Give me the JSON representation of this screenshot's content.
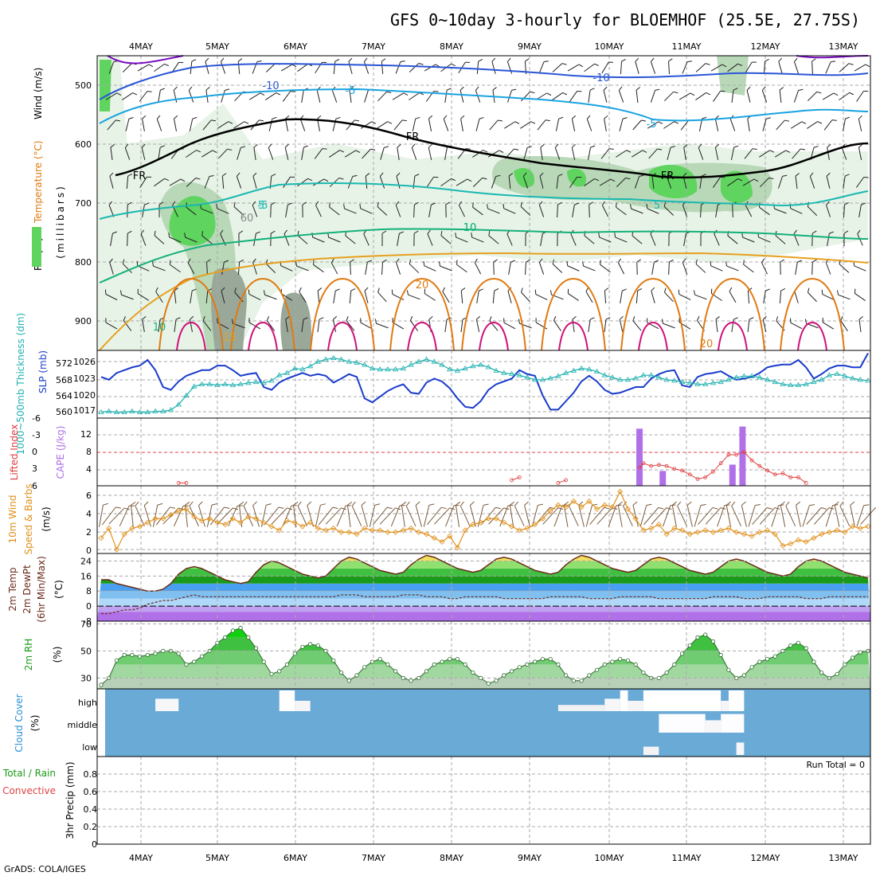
{
  "title": "GFS 0~10day 3-hourly for BLOEMHOF (25.5E, 27.75S)",
  "credit": "GrADS: COLA/IGES",
  "dates": [
    "4MAY",
    "5MAY",
    "6MAY",
    "7MAY",
    "8MAY",
    "9MAY",
    "10MAY",
    "11MAY",
    "12MAY",
    "13MAY"
  ],
  "colors": {
    "grid": "#aaaaaa",
    "rh_light": "#e6f2e6",
    "rh_mid": "#b8d8b8",
    "rh_gray": "#9aa89a",
    "rh_green": "#5fd45f",
    "temp_neg10": "#2a56d6",
    "temp_neg5": "#19a3e0",
    "temp_pos5": "#1ab8b0",
    "temp_10": "#14b07a",
    "temp_15": "#e6a020",
    "temp_20": "#e07a10",
    "temp_25": "#d0107a",
    "slp": "#1a3ccc",
    "thickness": "#20b0b0",
    "cape": "#b070e8",
    "li": "#e04040",
    "wind10": "#e0901a",
    "barb": "#7a5a3a",
    "cloud_bg": "#6aaad6"
  },
  "upper_panel": {
    "y_axis_title_parts": [
      "RH (%)",
      "Temperature (°C)",
      "Wind (m/s)"
    ],
    "y_axis_title_mb": "(millibars)",
    "levels": [
      "500",
      "600",
      "700",
      "800",
      "900"
    ],
    "contour_labels": [
      "-10",
      "-10",
      "-5",
      "-5",
      "-5",
      "FR",
      "FR",
      "FR",
      "10",
      "5",
      "5",
      "10",
      "10",
      "15",
      "20",
      "20",
      "60"
    ]
  },
  "panels": {
    "slp": {
      "left_title": "1000~500mb Thickness (dm)",
      "right_title": "SLP (mb)",
      "left_ticks": [
        "572",
        "568",
        "564",
        "560"
      ],
      "right_ticks": [
        "1026",
        "1023",
        "1020",
        "1017"
      ]
    },
    "cape": {
      "left_title": "Lifted Index",
      "right_title": "CAPE (J/kg)",
      "left_ticks": [
        "-6",
        "-3",
        "0",
        "3",
        "6"
      ],
      "right_ticks": [
        "12",
        "8",
        "4"
      ]
    },
    "wind": {
      "left_title": "10m Wind",
      "mid_title": "Speed & Barbs",
      "unit": "(m/s)",
      "ticks": [
        "6",
        "4",
        "2",
        "0"
      ]
    },
    "temp": {
      "titles": [
        "2m Temp",
        "2m DewPt",
        "(6hr Min/Max)"
      ],
      "unit": "(°C)",
      "ticks": [
        "24",
        "16",
        "8",
        "0",
        "-8"
      ]
    },
    "rh": {
      "title": "2m RH",
      "unit": "(%)",
      "ticks": [
        "70",
        "50",
        "30"
      ]
    },
    "cloud": {
      "title": "Cloud Cover",
      "unit": "(%)",
      "ticks": [
        "high",
        "middle",
        "low"
      ]
    },
    "precip": {
      "title": "Total / Rain",
      "subtitle": "Convective",
      "axis_title": "3hr Precip (mm)",
      "ticks": [
        "0.8",
        "0.6",
        "0.4",
        "0.2",
        "0"
      ],
      "run_total": "Run Total = 0"
    }
  },
  "chart_data": [
    {
      "type": "line",
      "name": "slp_thickness",
      "x_unit": "forecast step (3-hourly)",
      "series": [
        {
          "name": "SLP (mb)",
          "values": [
            1023.3,
            1022.8,
            1024,
            1024.5,
            1025,
            1025.3,
            1026.3,
            1024.5,
            1021.5,
            1021,
            1022.5,
            1023.5,
            1024,
            1024.5,
            1024.5,
            1025.3,
            1025.3,
            1024.5,
            1023.5,
            1023.8,
            1024,
            1021.5,
            1021,
            1022.3,
            1023,
            1023.5,
            1024,
            1023.5,
            1023.8,
            1023.5,
            1022.3,
            1023,
            1023.8,
            1023.3,
            1019.5,
            1018.8,
            1019.8,
            1020.8,
            1021.5,
            1022,
            1020.5,
            1020.3,
            1022.3,
            1023,
            1022.5,
            1021.3,
            1019.5,
            1018,
            1017.8,
            1019,
            1021,
            1022,
            1022.5,
            1023,
            1024.5,
            1023.8,
            1023.5,
            1020,
            1017.5,
            1017.5,
            1019,
            1020.5,
            1022.5,
            1023.5,
            1022.5,
            1021,
            1020.3,
            1020.5,
            1021,
            1021.5,
            1021.5,
            1023,
            1023.8,
            1024.3,
            1024.5,
            1021.8,
            1021.5,
            1023.3,
            1023.8,
            1024,
            1024.3,
            1023.5,
            1022.8,
            1023,
            1023.3,
            1024,
            1025,
            1025.3,
            1025.5,
            1025.5,
            1026.3,
            1025,
            1023,
            1023.8,
            1024.8,
            1025.3,
            1025.3,
            1025,
            1025,
            1027.5
          ]
        },
        {
          "name": "Thickness (dm)",
          "values": [
            560.3,
            560.5,
            560.3,
            560.3,
            560.5,
            560.3,
            560.3,
            560.5,
            560.5,
            560.8,
            562,
            564,
            566,
            566.5,
            566.5,
            566.3,
            566.5,
            566.3,
            566.5,
            566.8,
            567,
            566.8,
            567.3,
            568.5,
            569,
            570,
            569.8,
            570.5,
            571.5,
            572,
            572.3,
            572,
            571.5,
            571.3,
            570.8,
            570,
            569.8,
            569.8,
            569.8,
            570,
            570.8,
            571.5,
            572,
            571.5,
            570.8,
            569.8,
            569.5,
            570,
            570.5,
            570.8,
            570.3,
            569.5,
            569,
            568.8,
            568.5,
            568,
            567.5,
            567.5,
            567.8,
            568.3,
            569,
            569.5,
            570,
            569.8,
            569.3,
            568.5,
            568,
            567.5,
            567.5,
            567.8,
            568.5,
            568.5,
            568,
            567.5,
            567.3,
            567,
            566.8,
            566.5,
            566.5,
            566.8,
            567,
            567.5,
            568,
            568.3,
            568.3,
            568,
            567.5,
            567,
            566.5,
            566.3,
            566.3,
            566.5,
            567,
            567.5,
            568.5,
            568.8,
            568.3,
            567.8,
            567.5,
            567.3
          ]
        }
      ],
      "ylim_left": [
        559,
        574
      ],
      "ylim_right": [
        1016,
        1028
      ]
    },
    {
      "type": "bar",
      "name": "cape_lifted_index",
      "series": [
        {
          "name": "CAPE (J/kg)",
          "points": [
            {
              "x": 69.5,
              "y": 13.5
            },
            {
              "x": 72.5,
              "y": 3.5
            },
            {
              "x": 81.5,
              "y": 5
            },
            {
              "x": 82.8,
              "y": 14
            }
          ]
        },
        {
          "name": "Lifted Index",
          "points": [
            {
              "x": 10,
              "y": 5.5
            },
            {
              "x": 11,
              "y": 5.5
            },
            {
              "x": 53,
              "y": 5
            },
            {
              "x": 54,
              "y": 4.5
            },
            {
              "x": 59,
              "y": 5.5
            },
            {
              "x": 60,
              "y": 5
            },
            {
              "x": 69.5,
              "y": 2.8
            },
            {
              "x": 70,
              "y": 2
            },
            {
              "x": 71,
              "y": 2.5
            },
            {
              "x": 72,
              "y": 2.3
            },
            {
              "x": 73,
              "y": 2.5
            },
            {
              "x": 74,
              "y": 3
            },
            {
              "x": 75,
              "y": 3.3
            },
            {
              "x": 76,
              "y": 4
            },
            {
              "x": 77,
              "y": 4.8
            },
            {
              "x": 78,
              "y": 4.5
            },
            {
              "x": 79,
              "y": 3.5
            },
            {
              "x": 80,
              "y": 2
            },
            {
              "x": 81,
              "y": 0.5
            },
            {
              "x": 82,
              "y": 0.5
            },
            {
              "x": 83,
              "y": 0
            },
            {
              "x": 84,
              "y": 1.5
            },
            {
              "x": 85,
              "y": 2.5
            },
            {
              "x": 86,
              "y": 3.3
            },
            {
              "x": 87,
              "y": 4
            },
            {
              "x": 88,
              "y": 3.8
            },
            {
              "x": 89,
              "y": 4.5
            },
            {
              "x": 90,
              "y": 4.5
            },
            {
              "x": 91,
              "y": 5.5
            }
          ]
        }
      ],
      "ylim_left": [
        6,
        -6
      ],
      "ylim_right": [
        0,
        16
      ]
    },
    {
      "type": "line",
      "name": "wind10m",
      "series": [
        {
          "name": "10m Wind Speed (m/s)",
          "values": [
            1.6,
            2.6,
            0.4,
            2,
            2.6,
            2.8,
            3.2,
            3.6,
            3.6,
            4,
            4.4,
            4.6,
            3.8,
            3.4,
            3.6,
            3.2,
            3,
            3.6,
            3.2,
            3.8,
            3.6,
            3.2,
            2.8,
            2.4,
            3.4,
            3.2,
            2.8,
            3.2,
            2.6,
            2.4,
            2.6,
            2.2,
            2.2,
            2,
            2.6,
            2.4,
            2.4,
            2.2,
            2.2,
            2.4,
            2.6,
            2.2,
            2,
            1.6,
            1.2,
            1.8,
            0.6,
            2.4,
            3,
            3.2,
            3.6,
            3.6,
            3.2,
            2.8,
            2.4,
            2.6,
            3,
            3.6,
            4.4,
            5,
            4.8,
            5.4,
            4.8,
            5.4,
            4.6,
            5,
            4.8,
            6.4,
            4.6,
            3.6,
            2.4,
            2.6,
            3,
            2,
            2.6,
            2.4,
            2,
            2.2,
            2.4,
            2.2,
            2.4,
            2.6,
            2.2,
            2,
            1.8,
            2.2,
            2.4,
            2,
            0.8,
            1,
            1.4,
            1.2,
            1.6,
            2,
            2.2,
            2.4,
            2.2,
            2.8,
            2.6,
            2.8
          ]
        }
      ],
      "ylim": [
        0,
        7
      ]
    },
    {
      "type": "area",
      "name": "temperature",
      "series": [
        {
          "name": "2m Temp (°C)",
          "values": [
            14,
            14,
            12,
            11,
            10,
            9,
            8,
            8,
            9,
            12,
            17,
            20,
            21,
            20,
            18,
            16,
            14,
            13,
            12,
            13,
            18,
            22,
            24,
            23,
            21,
            19,
            17,
            16,
            15,
            16,
            20,
            24,
            26,
            25,
            23,
            21,
            19,
            18,
            17,
            18,
            22,
            25,
            27,
            26,
            24,
            22,
            20,
            19,
            18,
            19,
            22,
            25,
            26,
            25,
            23,
            21,
            19,
            18,
            17,
            18,
            22,
            25,
            27,
            26,
            24,
            22,
            20,
            19,
            18,
            19,
            22,
            25,
            26,
            25,
            23,
            21,
            19,
            18,
            17,
            18,
            21,
            24,
            25,
            24,
            22,
            20,
            18,
            17,
            16,
            17,
            21,
            24,
            25,
            24,
            22,
            20,
            18,
            17,
            16,
            15
          ]
        },
        {
          "name": "2m DewPt (°C)",
          "values": [
            -4,
            -4,
            -3,
            -2,
            -2,
            -1,
            1,
            2,
            3,
            3,
            4,
            5,
            6,
            5,
            5,
            5,
            5,
            5,
            5,
            5,
            5,
            5,
            5,
            5,
            5,
            5,
            5,
            5,
            5,
            5,
            5,
            6,
            6,
            6,
            5,
            5,
            5,
            5,
            5,
            6,
            6,
            6,
            5,
            5,
            5,
            4,
            4,
            5,
            5,
            5,
            5,
            5,
            4,
            4,
            4,
            4,
            4,
            4,
            5,
            5,
            5,
            5,
            5,
            4,
            4,
            4,
            4,
            5,
            5,
            5,
            5,
            5,
            4,
            4,
            4,
            4,
            4,
            4,
            4,
            5,
            5,
            5,
            5,
            4,
            4,
            4,
            5,
            5,
            5,
            5,
            5,
            4,
            4,
            4,
            5,
            5,
            5,
            5,
            5,
            5
          ]
        }
      ],
      "ylim": [
        -8,
        28
      ]
    },
    {
      "type": "area",
      "name": "rh2m",
      "series": [
        {
          "name": "2m RH (%)",
          "values": [
            25,
            30,
            43,
            47,
            47,
            46,
            47,
            48,
            50,
            50,
            48,
            40,
            42,
            46,
            50,
            56,
            60,
            65,
            67,
            60,
            52,
            42,
            33,
            35,
            40,
            48,
            53,
            55,
            54,
            50,
            43,
            34,
            28,
            32,
            38,
            42,
            44,
            40,
            35,
            30,
            28,
            30,
            35,
            40,
            42,
            44,
            44,
            40,
            34,
            30,
            26,
            28,
            32,
            35,
            38,
            40,
            42,
            44,
            44,
            40,
            32,
            28,
            28,
            32,
            36,
            40,
            42,
            44,
            43,
            40,
            34,
            30,
            30,
            34,
            40,
            48,
            54,
            60,
            62,
            57,
            47,
            36,
            30,
            32,
            38,
            42,
            44,
            46,
            50,
            54,
            56,
            52,
            42,
            34,
            30,
            33,
            40,
            45,
            49,
            50
          ]
        }
      ],
      "ylim": [
        22,
        72
      ]
    },
    {
      "type": "heatmap",
      "name": "cloud_cover",
      "rows": [
        "high",
        "middle",
        "low"
      ],
      "note": "mostly clear; high and middle cloud around 10-12 MAY",
      "cells": [
        {
          "row": "high",
          "from": 7,
          "to": 10,
          "value": 60
        },
        {
          "row": "high",
          "from": 23,
          "to": 25,
          "value": 100
        },
        {
          "row": "high",
          "from": 25,
          "to": 27,
          "value": 50
        },
        {
          "row": "high",
          "from": 59,
          "to": 65,
          "value": 30
        },
        {
          "row": "high",
          "from": 65,
          "to": 67,
          "value": 60
        },
        {
          "row": "high",
          "from": 67,
          "to": 68,
          "value": 100
        },
        {
          "row": "high",
          "from": 68,
          "to": 70,
          "value": 50
        },
        {
          "row": "high",
          "from": 70,
          "to": 80,
          "value": 100
        },
        {
          "row": "high",
          "from": 80,
          "to": 81,
          "value": 50
        },
        {
          "row": "high",
          "from": 81,
          "to": 83,
          "value": 100
        },
        {
          "row": "middle",
          "from": 72,
          "to": 78,
          "value": 90
        },
        {
          "row": "middle",
          "from": 78,
          "to": 80,
          "value": 60
        },
        {
          "row": "middle",
          "from": 80,
          "to": 83,
          "value": 90
        },
        {
          "row": "low",
          "from": 70,
          "to": 72,
          "value": 40
        },
        {
          "row": "low",
          "from": 82,
          "to": 83,
          "value": 60
        }
      ]
    },
    {
      "type": "bar",
      "name": "precip",
      "series": [
        {
          "name": "3hr Precip (mm)",
          "values": []
        }
      ],
      "ylim": [
        0,
        1
      ]
    }
  ]
}
